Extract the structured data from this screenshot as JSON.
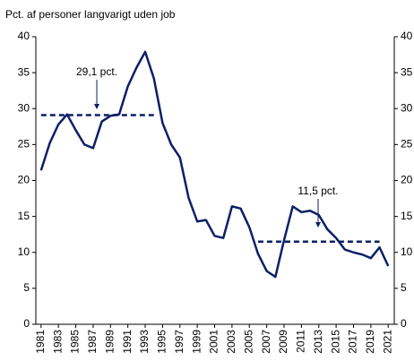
{
  "chart_data": {
    "type": "line",
    "y_label": "Pct. af personer langvarigt uden job",
    "x": [
      1981,
      1982,
      1983,
      1984,
      1985,
      1986,
      1987,
      1988,
      1989,
      1990,
      1991,
      1992,
      1993,
      1994,
      1995,
      1996,
      1997,
      1998,
      1999,
      2000,
      2001,
      2002,
      2003,
      2004,
      2005,
      2006,
      2007,
      2008,
      2009,
      2010,
      2011,
      2012,
      2013,
      2014,
      2015,
      2016,
      2017,
      2018,
      2019,
      2020,
      2021
    ],
    "series": [
      {
        "color": "#0c1f66",
        "values": [
          21.4,
          25.2,
          27.8,
          29.2,
          27,
          25,
          24.5,
          28.2,
          29,
          29.2,
          33.1,
          35.7,
          37.9,
          34.2,
          28,
          25,
          23.2,
          17.6,
          14.3,
          14.5,
          12.3,
          12,
          16.4,
          16.1,
          13.5,
          9.8,
          7.4,
          6.6,
          11.7,
          16.4,
          15.6,
          15.8,
          15.2,
          13.2,
          12,
          10.4,
          10,
          9.7,
          9.2,
          10.7,
          8.1
        ]
      }
    ],
    "reference_lines": [
      {
        "value": 29.1,
        "x": [
          1981,
          1994
        ]
      },
      {
        "value": 11.5,
        "x": [
          2006,
          2020
        ]
      }
    ],
    "annotations": [
      "29,1 pct.",
      "11,5 pct."
    ],
    "xlim": [
      1980.4,
      2021.7
    ],
    "xticks": [
      1981,
      1983,
      1985,
      1987,
      1989,
      1991,
      1993,
      1995,
      1997,
      1999,
      2001,
      2003,
      2005,
      2007,
      2009,
      2011,
      2013,
      2015,
      2017,
      2019,
      2021
    ],
    "ylim": [
      0,
      40
    ],
    "yticks": [
      0,
      5,
      10,
      15,
      20,
      25,
      30,
      35,
      40
    ],
    "y2lim": [
      0,
      40
    ],
    "y2ticks": [
      0,
      5,
      10,
      15,
      20,
      25,
      30,
      35,
      40
    ],
    "grid": false
  }
}
